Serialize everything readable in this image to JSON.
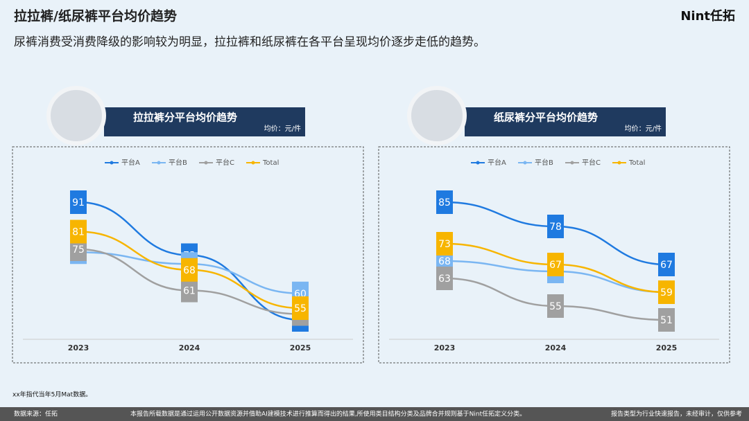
{
  "header": {
    "title": "拉拉裤/纸尿裤平台均价趋势",
    "subtitle": "尿裤消费受消费降级的影响较为明显，拉拉裤和纸尿裤在各平台呈现均价逐步走低的趋势。",
    "logo": "Nint任拓"
  },
  "chart_data": [
    {
      "type": "line",
      "title": "拉拉裤分平台均价趋势",
      "subtitle": "均价：元/件",
      "categories": [
        "2023",
        "2024",
        "2025"
      ],
      "series": [
        {
          "name": "平台A",
          "color": "#1f7ae0",
          "values": [
            91,
            73,
            51
          ]
        },
        {
          "name": "平台B",
          "color": "#7ab6f2",
          "values": [
            74,
            70,
            60
          ]
        },
        {
          "name": "平台C",
          "color": "#a0a0a0",
          "values": [
            75,
            61,
            53
          ]
        },
        {
          "name": "Total",
          "color": "#f7b500",
          "values": [
            81,
            68,
            55
          ]
        }
      ]
    },
    {
      "type": "line",
      "title": "纸尿裤分平台均价趋势",
      "subtitle": "均价：元/件",
      "categories": [
        "2023",
        "2024",
        "2025"
      ],
      "series": [
        {
          "name": "平台A",
          "color": "#1f7ae0",
          "values": [
            85,
            78,
            67
          ]
        },
        {
          "name": "平台B",
          "color": "#7ab6f2",
          "values": [
            68,
            65,
            59
          ]
        },
        {
          "name": "平台C",
          "color": "#a0a0a0",
          "values": [
            63,
            55,
            51
          ]
        },
        {
          "name": "Total",
          "color": "#f7b500",
          "values": [
            73,
            67,
            59
          ]
        }
      ]
    }
  ],
  "footnote": "xx年指代当年5月Mat数据。",
  "footer": {
    "source": "数据来源：任拓",
    "disclaimer": "本报告所载数据是通过运用公开数据资源并借助AI建模技术进行推算而得出的结果,所使用类目结构分类及品牌合并规则基于Nint任拓定义分类。",
    "note": "报告类型为行业快速报告，未经审计，仅供参考"
  }
}
